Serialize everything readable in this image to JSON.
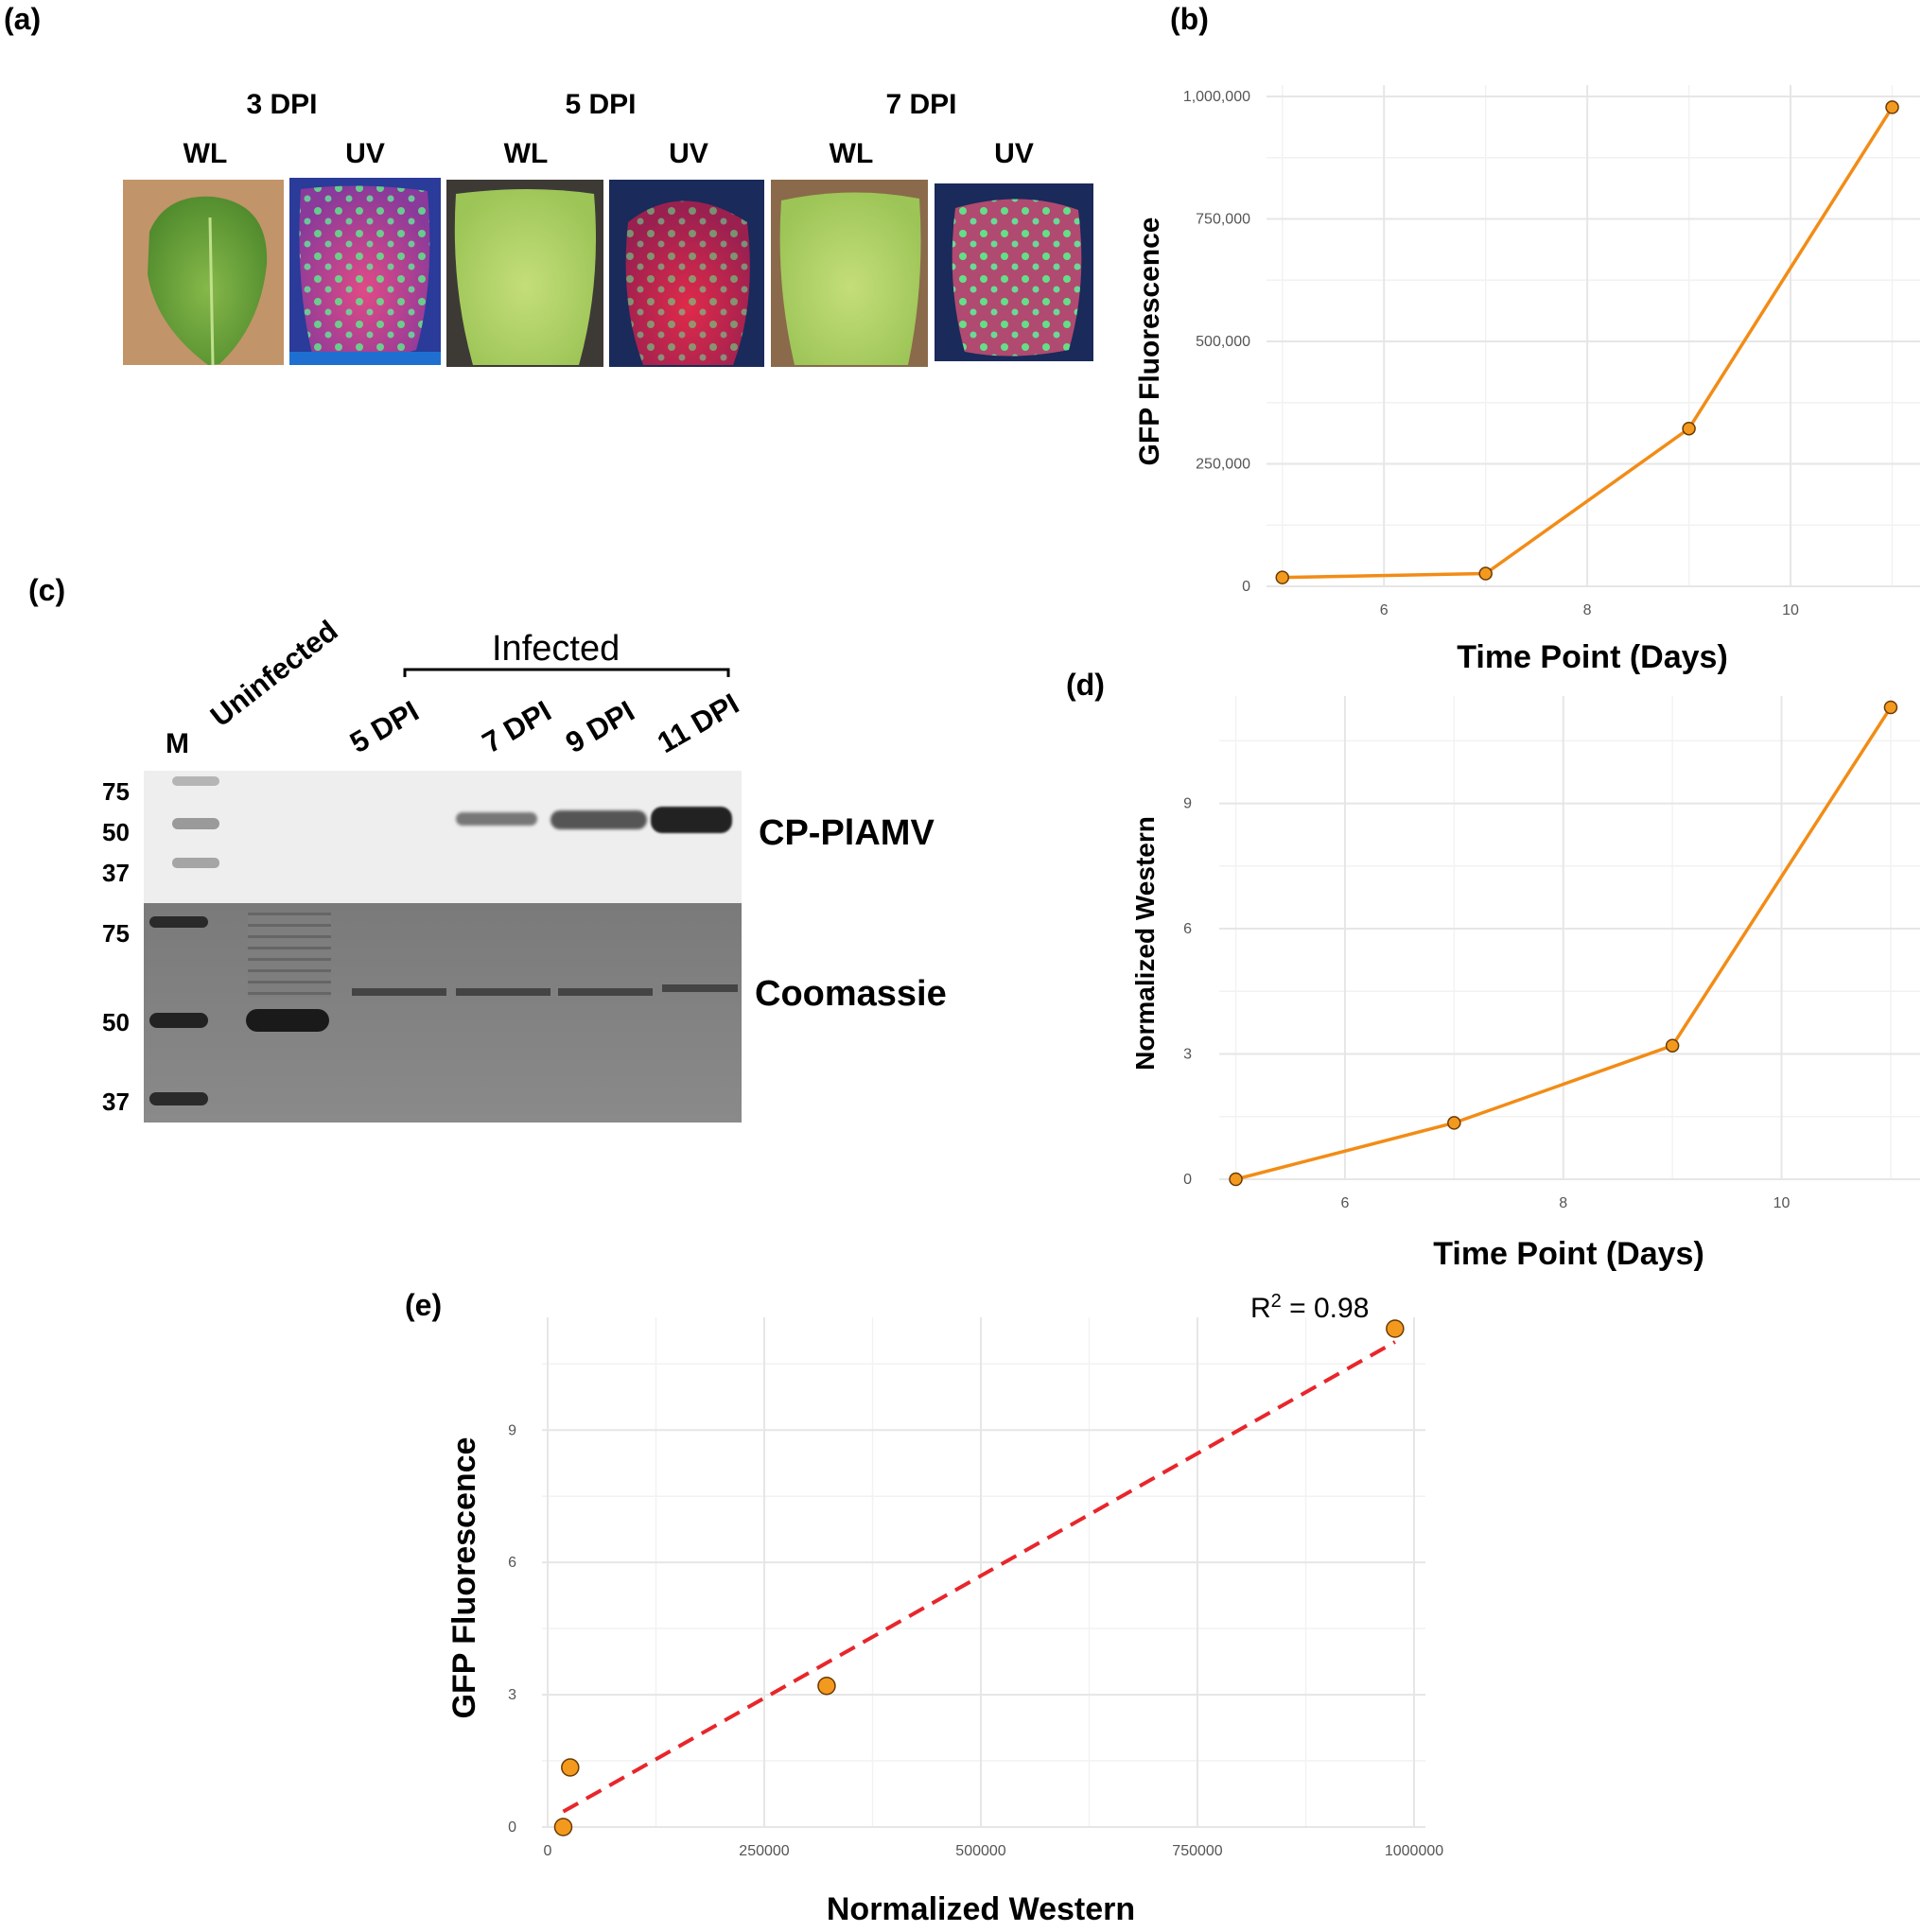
{
  "panel_a": {
    "label": "(a)",
    "groups": [
      {
        "title": "3 DPI",
        "wl": "WL",
        "uv": "UV"
      },
      {
        "title": "5 DPI",
        "wl": "WL",
        "uv": "UV"
      },
      {
        "title": "7 DPI",
        "wl": "WL",
        "uv": "UV"
      }
    ]
  },
  "panel_c": {
    "label": "(c)",
    "infected_label": "Infected",
    "lanes": [
      "M",
      "Uninfected",
      "5 DPI",
      "7 DPI",
      "9 DPI",
      "11 DPI"
    ],
    "blot_markers": [
      "75",
      "50",
      "37"
    ],
    "gel_markers": [
      "75",
      "50",
      "37"
    ],
    "blot_label": "CP-PlAMV",
    "gel_label": "Coomassie"
  },
  "colors": {
    "line": "#f28c16",
    "point_fill": "#f39a1e",
    "fit": "#e8262b",
    "grid": "#e6e6e6"
  },
  "chart_data": [
    {
      "panel": "(b)",
      "type": "line",
      "x": [
        5,
        7,
        9,
        11
      ],
      "values": [
        18000,
        26000,
        322000,
        978000
      ],
      "xlabel": "Time Point (Days)",
      "ylabel": "GFP Fluorescence",
      "xlim": [
        4.9,
        11.2
      ],
      "ylim": [
        0,
        1000000
      ],
      "xticks": [
        6,
        8,
        10
      ],
      "xtick_labels": [
        "6",
        "8",
        "10"
      ],
      "yticks": [
        0,
        250000,
        500000,
        750000,
        1000000
      ],
      "ytick_labels": [
        "0",
        "250,000",
        "500,000",
        "750,000",
        "1,000,000"
      ],
      "grid": true
    },
    {
      "panel": "(d)",
      "type": "line",
      "x": [
        5,
        7,
        9,
        11
      ],
      "values": [
        0,
        1.35,
        3.2,
        11.3
      ],
      "xlabel": "Time Point (Days)",
      "ylabel": "Normalized Western",
      "xlim": [
        4.9,
        11.2
      ],
      "ylim": [
        0,
        11.3
      ],
      "xticks": [
        6,
        8,
        10
      ],
      "xtick_labels": [
        "6",
        "8",
        "10"
      ],
      "yticks": [
        0,
        3,
        6,
        9
      ],
      "ytick_labels": [
        "0",
        "3",
        "6",
        "9"
      ],
      "grid": true
    },
    {
      "panel": "(e)",
      "type": "scatter",
      "x": [
        18000,
        26000,
        322000,
        978000
      ],
      "values": [
        0,
        1.35,
        3.2,
        11.3
      ],
      "fit_line": {
        "x": [
          18000,
          978000
        ],
        "y": [
          0.35,
          11.0
        ]
      },
      "annotation": {
        "base": "R",
        "sup": "2",
        "rest": " = 0.98"
      },
      "xlabel": "Normalized Western",
      "ylabel": "GFP Fluorescence",
      "xlim": [
        0,
        1000000
      ],
      "ylim": [
        0,
        11.3
      ],
      "xticks": [
        0,
        250000,
        500000,
        750000,
        1000000
      ],
      "xtick_labels": [
        "0",
        "250000",
        "500000",
        "750000",
        "1000000"
      ],
      "yticks": [
        0,
        3,
        6,
        9
      ],
      "ytick_labels": [
        "0",
        "3",
        "6",
        "9"
      ],
      "grid": true
    }
  ]
}
